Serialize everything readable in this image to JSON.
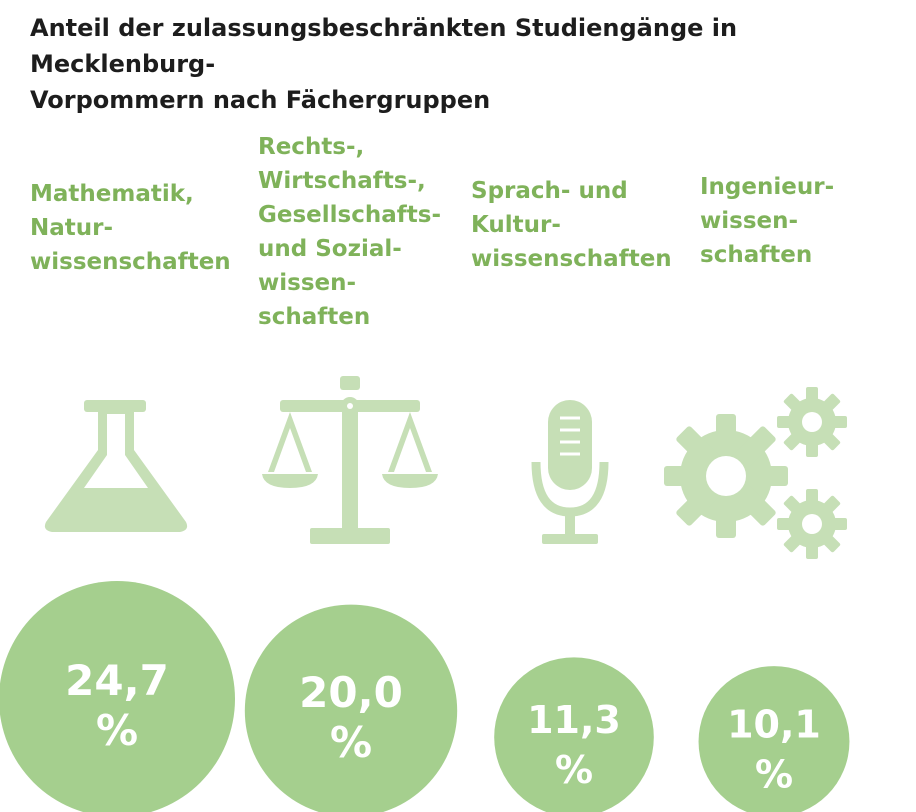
{
  "title": "Anteil der zulassungsbeschränkten Studiengänge in Mecklenburg-\nVorpommern nach Fächergruppen",
  "colors": {
    "label": "#7fb25a",
    "icon": "#c6dfb6",
    "bubble": "#a5cf8e",
    "bubble_text": "#ffffff",
    "title": "#1d1d1d"
  },
  "categories": [
    {
      "label": "Mathematik,\nNatur-\nwissenschaften",
      "icon": "flask-icon"
    },
    {
      "label": "Rechts-,\nWirtschafts-,\nGesellschafts-\nund Sozial-\nwissen-\nschaften",
      "icon": "scales-icon"
    },
    {
      "label": "Sprach- und\nKultur-\nwissenschaften",
      "icon": "microphone-icon"
    },
    {
      "label": "Ingenieur-\nwissen-\nschaften",
      "icon": "gears-icon"
    }
  ],
  "chart_data": {
    "type": "bubble",
    "unit": "%",
    "categories": [
      "Mathematik, Naturwissenschaften",
      "Rechts-, Wirtschafts-, Gesellschafts- und Sozialwissenschaften",
      "Sprach- und Kulturwissenschaften",
      "Ingenieurwissenschaften"
    ],
    "values": [
      24.7,
      20.0,
      11.3,
      10.1
    ],
    "value_labels": [
      "24,7",
      "20,0",
      "11,3",
      "10,1"
    ]
  }
}
